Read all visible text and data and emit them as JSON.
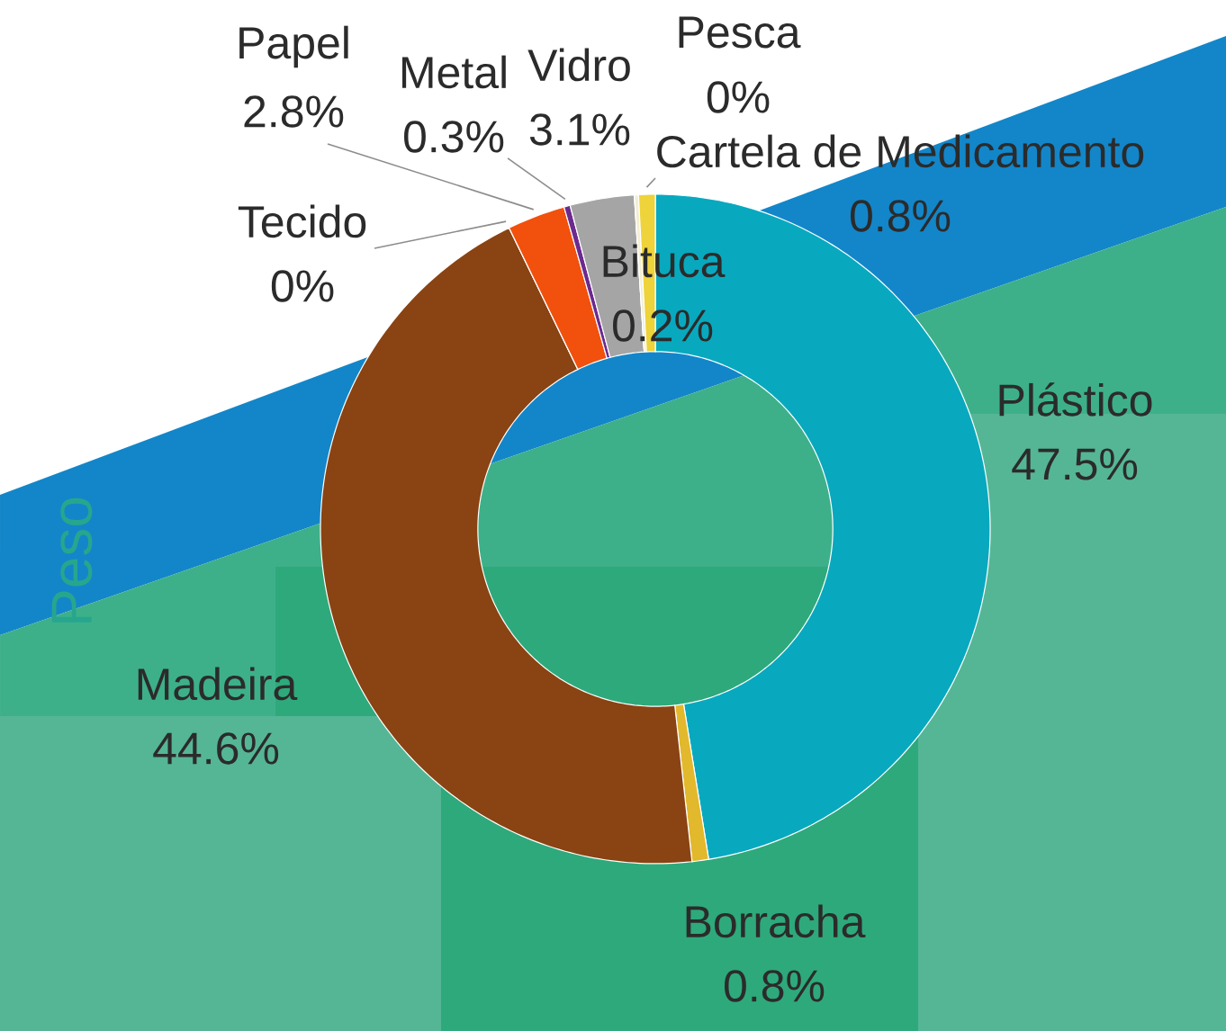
{
  "chart_data": {
    "type": "donut",
    "categories": [
      "Plástico",
      "Borracha",
      "Madeira",
      "Tecido",
      "Papel",
      "Metal",
      "Vidro",
      "Pesca",
      "Bituca",
      "Cartela de Medicamento"
    ],
    "values": [
      47.5,
      0.8,
      44.6,
      0,
      2.8,
      0.3,
      3.1,
      0,
      0.2,
      0.8
    ],
    "value_labels": [
      "47.5%",
      "0.8%",
      "44.6%",
      "0%",
      "2.8%",
      "0.3%",
      "3.1%",
      "0%",
      "0.2%",
      "0.8%"
    ],
    "colors": [
      "#08a9bf",
      "#e2b82c",
      "#8a4312",
      null,
      "#f2500d",
      "#6b2a8f",
      "#a5a5a5",
      null,
      "#f3eed3",
      "#eed33a"
    ],
    "annotations": [
      "Peso"
    ]
  }
}
